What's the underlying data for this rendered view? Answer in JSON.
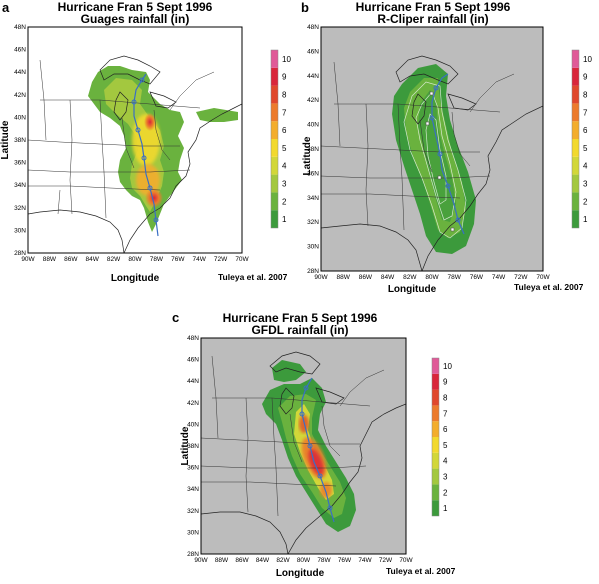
{
  "figure": {
    "panels": [
      {
        "id": "a",
        "label": "a",
        "title_line1": "Hurricane Fran 5 Sept 1996",
        "title_line2": "Guages rainfall (in)",
        "xlabel": "Longitude",
        "ylabel": "Latitude",
        "credit": "Tuleya et al. 2007",
        "lon_ticks": [
          "90W",
          "88W",
          "86W",
          "84W",
          "82W",
          "80W",
          "78W",
          "76W",
          "74W",
          "72W",
          "70W"
        ],
        "lat_ticks": [
          "28N",
          "30N",
          "32N",
          "34N",
          "36N",
          "38N",
          "40N",
          "42N",
          "44N",
          "46N",
          "48N"
        ],
        "colorbar_labels": [
          "1",
          "2",
          "3",
          "4",
          "5",
          "6",
          "7",
          "8",
          "9",
          "10"
        ],
        "background": "white"
      },
      {
        "id": "b",
        "label": "b",
        "title_line1": "Hurricane Fran 5 Sept 1996",
        "title_line2": "R-Cliper rainfall (in)",
        "xlabel": "Longitude",
        "ylabel": "Latitude",
        "credit": "Tuleya et al. 2007",
        "lon_ticks": [
          "90W",
          "88W",
          "86W",
          "84W",
          "82W",
          "80W",
          "78W",
          "76W",
          "74W",
          "72W",
          "70W"
        ],
        "lat_ticks": [
          "28N",
          "30N",
          "32N",
          "34N",
          "36N",
          "38N",
          "40N",
          "42N",
          "44N",
          "46N",
          "48N"
        ],
        "colorbar_labels": [
          "1",
          "2",
          "3",
          "4",
          "5",
          "6",
          "7",
          "8",
          "9",
          "10"
        ],
        "background": "grey"
      },
      {
        "id": "c",
        "label": "c",
        "title_line1": "Hurricane Fran 5 Sept 1996",
        "title_line2": "GFDL rainfall (in)",
        "xlabel": "Longitude",
        "ylabel": "Latitude",
        "credit": "Tuleya et al. 2007",
        "lon_ticks": [
          "90W",
          "88W",
          "86W",
          "84W",
          "82W",
          "80W",
          "78W",
          "76W",
          "74W",
          "72W",
          "70W"
        ],
        "lat_ticks": [
          "28N",
          "30N",
          "32N",
          "34N",
          "36N",
          "38N",
          "40N",
          "42N",
          "44N",
          "46N",
          "48N"
        ],
        "colorbar_labels": [
          "1",
          "2",
          "3",
          "4",
          "5",
          "6",
          "7",
          "8",
          "9",
          "10"
        ],
        "background": "grey"
      }
    ],
    "colorscale": [
      "#3c9a3c",
      "#6ab23e",
      "#a3c83f",
      "#d2d739",
      "#f2d92e",
      "#f3ad2d",
      "#ec7b2c",
      "#e0482c",
      "#d9263b",
      "#e05a98"
    ],
    "track_color": "#3a6fc4"
  }
}
